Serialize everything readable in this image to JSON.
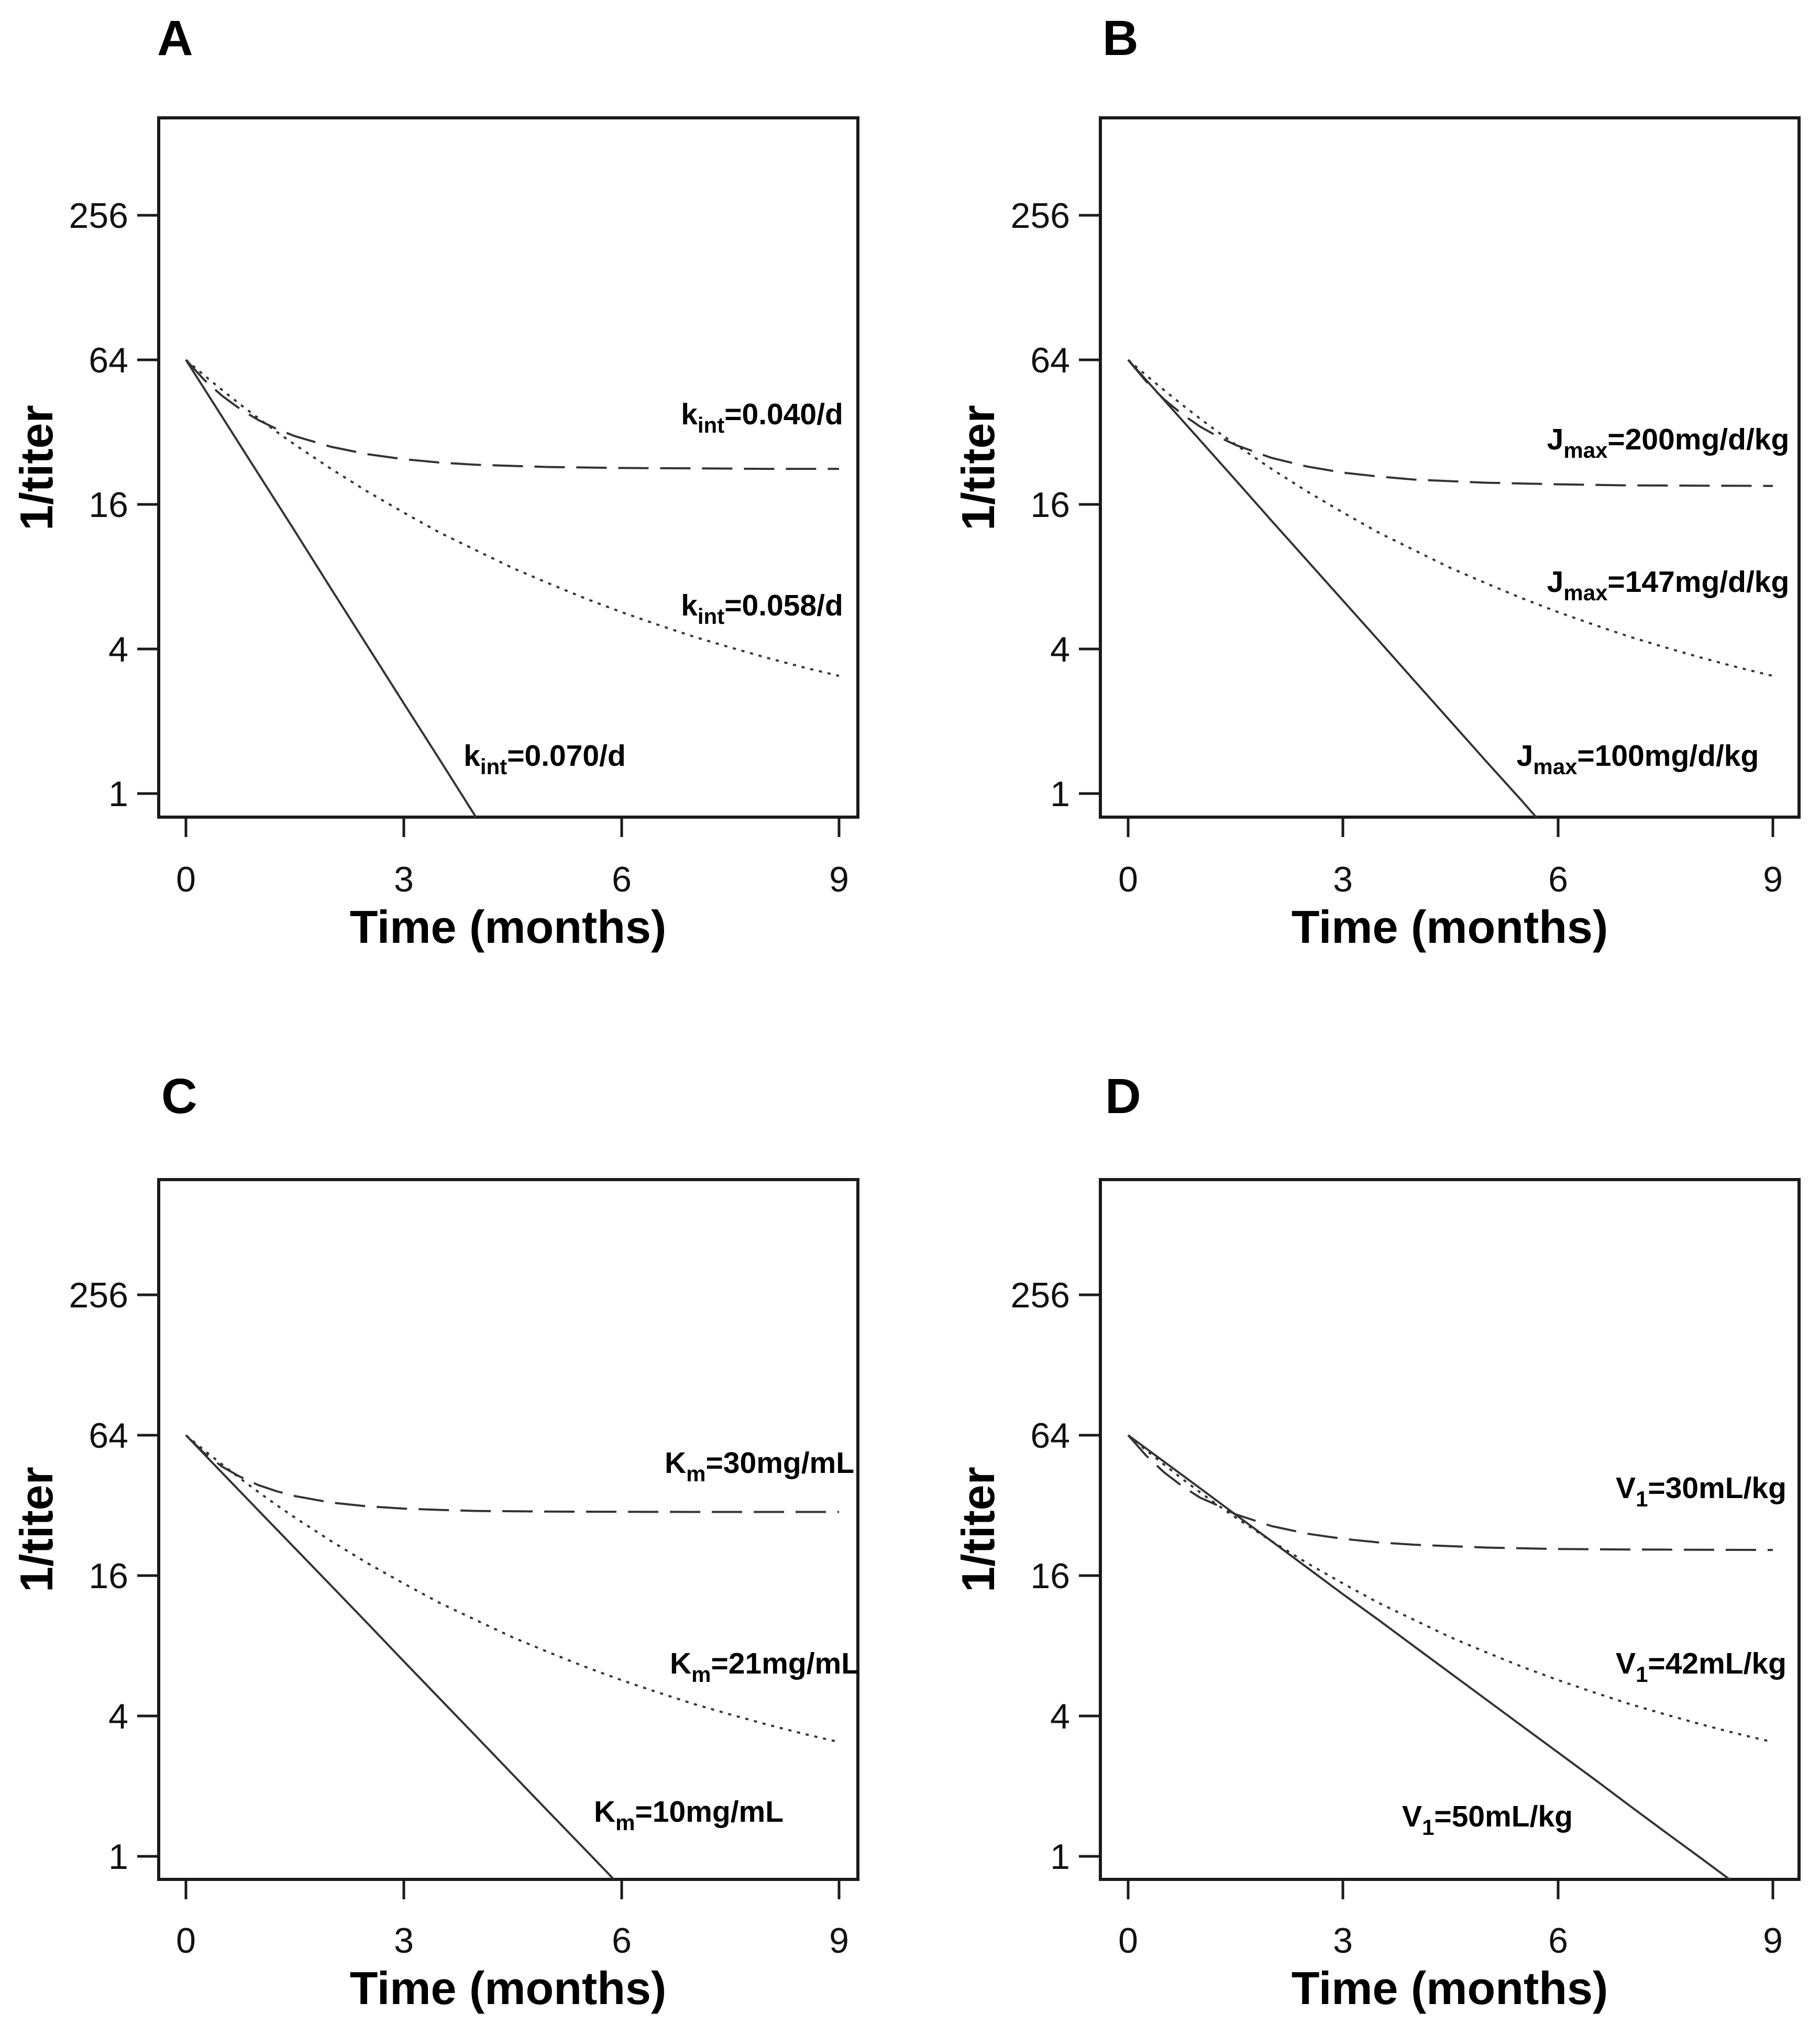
{
  "figure": {
    "layout": "2x2 panel grid",
    "background": "#ffffff",
    "line_color": "#333333"
  },
  "chart_data": [
    {
      "type": "line",
      "panel": "A",
      "panel_label": "A",
      "xlabel": "Time (months)",
      "ylabel": "1/titer",
      "x_ticks": [
        0,
        3,
        6,
        9
      ],
      "y_ticks": [
        256,
        64,
        16,
        4,
        1
      ],
      "y_scale": "log4",
      "xlim": [
        0,
        9
      ],
      "ylim": [
        0.8,
        870
      ],
      "grid": false,
      "series": [
        {
          "name": "k_int=0.040/d",
          "label": {
            "pre": "k",
            "sub": "int",
            "post": "=0.040/d"
          },
          "linestyle": "dashed",
          "t": [
            0,
            0.25,
            0.5,
            0.75,
            1,
            1.25,
            1.5,
            2,
            2.5,
            3,
            3.5,
            4,
            5,
            6,
            7,
            8,
            9
          ],
          "v": [
            64,
            52.9,
            45.3,
            39.9,
            35.9,
            33,
            30.8,
            27.8,
            25.9,
            24.7,
            23.9,
            23.4,
            22.9,
            22.7,
            22.6,
            22.5,
            22.5
          ]
        },
        {
          "name": "k_int=0.058/d",
          "label": {
            "pre": "k",
            "sub": "int",
            "post": "=0.058/d"
          },
          "linestyle": "dotted",
          "t": [
            0,
            0.25,
            0.5,
            0.75,
            1,
            1.25,
            1.5,
            2,
            2.5,
            3,
            3.5,
            4,
            4.5,
            5,
            5.5,
            6,
            6.5,
            7,
            7.5,
            8,
            8.5,
            9
          ],
          "v": [
            64,
            55.2,
            47.9,
            41.7,
            36.5,
            32.1,
            28.4,
            22.5,
            18.1,
            14.8,
            12.2,
            10.3,
            8.7,
            7.5,
            6.5,
            5.7,
            5.05,
            4.5,
            4.06,
            3.68,
            3.36,
            3.09
          ]
        },
        {
          "name": "k_int=0.070/d",
          "label": {
            "pre": "k",
            "sub": "int",
            "post": "=0.070/d"
          },
          "linestyle": "solid",
          "t": [
            0,
            0.5,
            1,
            1.5,
            2,
            2.5,
            3,
            3.5,
            4
          ],
          "v": [
            64,
            37,
            21.4,
            12.4,
            7.13,
            4.12,
            2.38,
            1.38,
            0.795
          ]
        }
      ]
    },
    {
      "type": "line",
      "panel": "B",
      "panel_label": "B",
      "xlabel": "Time (months)",
      "ylabel": "1/titer",
      "x_ticks": [
        0,
        3,
        6,
        9
      ],
      "y_ticks": [
        256,
        64,
        16,
        4,
        1
      ],
      "y_scale": "log4",
      "xlim": [
        0,
        9
      ],
      "ylim": [
        0.8,
        870
      ],
      "grid": false,
      "series": [
        {
          "name": "J_max=200mg/d/kg",
          "label": {
            "pre": "J",
            "sub": "max",
            "post": "=200mg/d/kg"
          },
          "linestyle": "dashed",
          "t": [
            0,
            0.25,
            0.5,
            0.75,
            1,
            1.25,
            1.5,
            2,
            2.5,
            3,
            3.5,
            4,
            5,
            6,
            7,
            8,
            9
          ],
          "v": [
            64,
            52.1,
            43.9,
            38.1,
            33.8,
            30.7,
            28.3,
            25,
            23,
            21.7,
            20.9,
            20.3,
            19.7,
            19.4,
            19.2,
            19.15,
            19.1
          ]
        },
        {
          "name": "J_max=147mg/d/kg",
          "label": {
            "pre": "J",
            "sub": "max",
            "post": "=147mg/d/kg"
          },
          "linestyle": "dotted",
          "t": [
            0,
            0.25,
            0.5,
            0.75,
            1,
            1.25,
            1.5,
            2,
            2.5,
            3,
            3.5,
            4,
            4.5,
            5,
            5.5,
            6,
            6.5,
            7,
            7.5,
            8,
            8.5,
            9
          ],
          "v": [
            64,
            55.2,
            47.9,
            41.7,
            36.5,
            32.1,
            28.4,
            22.5,
            18.1,
            14.8,
            12.2,
            10.3,
            8.7,
            7.5,
            6.5,
            5.7,
            5.05,
            4.5,
            4.06,
            3.68,
            3.36,
            3.09
          ]
        },
        {
          "name": "J_max=100mg/d/kg",
          "label": {
            "pre": "J",
            "sub": "max",
            "post": "=100mg/d/kg"
          },
          "linestyle": "solid",
          "t": [
            0,
            0.5,
            1,
            1.5,
            2,
            2.5,
            3,
            3.5,
            4,
            4.5,
            5,
            5.5,
            5.7
          ],
          "v": [
            64,
            43.6,
            29.7,
            20.2,
            13.7,
            9.34,
            6.36,
            4.33,
            2.94,
            2.0,
            1.36,
            0.93,
            0.795
          ]
        }
      ]
    },
    {
      "type": "line",
      "panel": "C",
      "panel_label": "C",
      "xlabel": "Time (months)",
      "ylabel": "1/titer",
      "x_ticks": [
        0,
        3,
        6,
        9
      ],
      "y_ticks": [
        256,
        64,
        16,
        4,
        1
      ],
      "y_scale": "log4",
      "xlim": [
        0,
        9
      ],
      "ylim": [
        0.8,
        870
      ],
      "grid": false,
      "series": [
        {
          "name": "K_m=30mg/mL",
          "label": {
            "pre": "K",
            "sub": "m",
            "post": "=30mg/mL"
          },
          "linestyle": "dashed",
          "t": [
            0,
            0.25,
            0.5,
            0.75,
            1,
            1.25,
            1.5,
            2,
            2.5,
            3,
            3.5,
            4,
            5,
            6,
            7,
            8,
            9
          ],
          "v": [
            64,
            53.7,
            46.9,
            42.4,
            39.1,
            36.8,
            35.1,
            32.9,
            31.7,
            31,
            30.6,
            30.3,
            30.1,
            30.05,
            30,
            30,
            30
          ]
        },
        {
          "name": "K_m=21mg/mL",
          "label": {
            "pre": "K",
            "sub": "m",
            "post": "=21mg/mL"
          },
          "linestyle": "dotted",
          "t": [
            0,
            0.25,
            0.5,
            0.75,
            1,
            1.25,
            1.5,
            2,
            2.5,
            3,
            3.5,
            4,
            4.5,
            5,
            5.5,
            6,
            6.5,
            7,
            7.5,
            8,
            8.5,
            9
          ],
          "v": [
            64,
            55.2,
            47.9,
            41.7,
            36.5,
            32.1,
            28.4,
            22.5,
            18.1,
            14.8,
            12.2,
            10.3,
            8.7,
            7.5,
            6.5,
            5.7,
            5.05,
            4.5,
            4.06,
            3.68,
            3.36,
            3.09
          ]
        },
        {
          "name": "K_m=10mg/mL",
          "label": {
            "pre": "K",
            "sub": "m",
            "post": "=10mg/mL"
          },
          "linestyle": "solid",
          "t": [
            0,
            0.5,
            1,
            1.5,
            2,
            2.5,
            3,
            3.5,
            4,
            4.5,
            5,
            5.5,
            5.9
          ],
          "v": [
            64,
            44.1,
            30.4,
            21,
            14.5,
            10,
            6.87,
            4.74,
            3.27,
            2.25,
            1.55,
            1.07,
            0.795
          ]
        }
      ]
    },
    {
      "type": "line",
      "panel": "D",
      "panel_label": "D",
      "xlabel": "Time (months)",
      "ylabel": "1/titer",
      "x_ticks": [
        0,
        3,
        6,
        9
      ],
      "y_ticks": [
        256,
        64,
        16,
        4,
        1
      ],
      "y_scale": "log4",
      "xlim": [
        0,
        9
      ],
      "ylim": [
        0.8,
        870
      ],
      "grid": false,
      "series": [
        {
          "name": "V_1=30mL/kg",
          "label": {
            "pre": "V",
            "sub": "1",
            "post": "=30mL/kg"
          },
          "linestyle": "dashed",
          "t": [
            0,
            0.25,
            0.5,
            0.75,
            1,
            1.25,
            1.5,
            2,
            2.5,
            3,
            3.5,
            4,
            5,
            6,
            7,
            8,
            9
          ],
          "v": [
            64,
            52.4,
            44.4,
            38.8,
            34.6,
            32,
            29.3,
            26.1,
            24.2,
            23,
            22.2,
            21.7,
            21.1,
            20.8,
            20.7,
            20.65,
            20.6
          ]
        },
        {
          "name": "V_1=42mL/kg",
          "label": {
            "pre": "V",
            "sub": "1",
            "post": "=42mL/kg"
          },
          "linestyle": "dotted",
          "t": [
            0,
            0.25,
            0.5,
            0.75,
            1,
            1.25,
            1.5,
            2,
            2.5,
            3,
            3.5,
            4,
            4.5,
            5,
            5.5,
            6,
            6.5,
            7,
            7.5,
            8,
            8.5,
            9
          ],
          "v": [
            64,
            55.2,
            47.9,
            41.7,
            36.5,
            32.1,
            28.4,
            22.5,
            18.1,
            14.8,
            12.2,
            10.3,
            8.7,
            7.5,
            6.5,
            5.7,
            5.05,
            4.5,
            4.06,
            3.68,
            3.36,
            3.09
          ]
        },
        {
          "name": "V_1=50mL/kg",
          "label": {
            "pre": "V",
            "sub": "1",
            "post": "=50mL/kg"
          },
          "linestyle": "solid",
          "t": [
            0,
            0.5,
            1,
            1.5,
            2,
            2.5,
            3,
            3.5,
            4,
            4.5,
            5,
            5.5,
            6,
            6.5,
            7,
            7.5,
            8,
            8.4
          ],
          "v": [
            64,
            49.3,
            38,
            29.2,
            22.5,
            17.3,
            13.3,
            10.3,
            7.92,
            6.1,
            4.7,
            3.62,
            2.79,
            2.15,
            1.65,
            1.27,
            0.98,
            0.795
          ]
        }
      ]
    }
  ]
}
